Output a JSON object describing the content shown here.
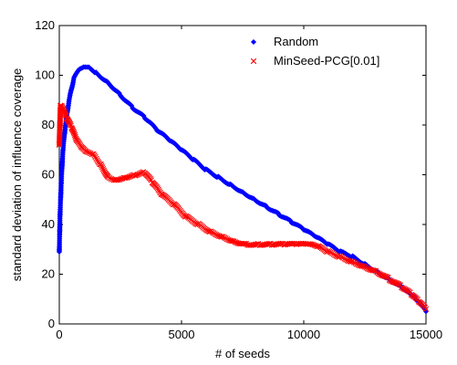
{
  "chart_data": {
    "type": "scatter",
    "title": "",
    "xlabel": "# of seeds",
    "ylabel": "standard deviation of influence coverage",
    "xlim": [
      0,
      15000
    ],
    "ylim": [
      0,
      120
    ],
    "xticks": [
      0,
      5000,
      10000,
      15000
    ],
    "yticks": [
      0,
      20,
      40,
      60,
      80,
      100,
      120
    ],
    "grid": false,
    "legend_position": "top-right",
    "series": [
      {
        "name": "Random",
        "marker": "diamond",
        "color": "#0000ff",
        "x": [
          0,
          30,
          80,
          150,
          250,
          400,
          600,
          800,
          1000,
          1200,
          1500,
          2000,
          2500,
          3000,
          3500,
          4000,
          4500,
          5000,
          5500,
          6000,
          6500,
          7000,
          7500,
          8000,
          8500,
          9000,
          9500,
          10000,
          10500,
          11000,
          11500,
          12000,
          12500,
          13000,
          13500,
          14000,
          14300,
          14600,
          14800,
          15000
        ],
        "y": [
          29,
          44,
          57,
          70,
          80,
          90,
          99,
          102,
          103,
          103,
          101,
          97,
          92,
          87,
          83,
          78,
          74,
          70,
          66,
          62,
          59,
          56,
          53,
          50,
          47,
          44,
          41,
          38,
          35,
          32,
          29,
          27,
          24,
          21,
          18,
          15,
          13,
          10,
          8,
          5
        ]
      },
      {
        "name": "MinSeed-PCG[0.01]",
        "marker": "x",
        "color": "#ff0000",
        "x": [
          0,
          50,
          100,
          200,
          300,
          500,
          700,
          900,
          1100,
          1400,
          1700,
          2000,
          2300,
          2700,
          3100,
          3500,
          3800,
          4200,
          4700,
          5200,
          5700,
          6200,
          6700,
          7200,
          7700,
          8200,
          8700,
          9200,
          9700,
          10200,
          10600,
          11000,
          11500,
          12000,
          12500,
          13000,
          13500,
          14000,
          14400,
          14700,
          15000
        ],
        "y": [
          72,
          88,
          88,
          86,
          83,
          79,
          74,
          71,
          69,
          68,
          64,
          59,
          58,
          59,
          60,
          61,
          57,
          52,
          48,
          43,
          40,
          37,
          35,
          33,
          32,
          32,
          32,
          32,
          32,
          32,
          31,
          29,
          27,
          25,
          23,
          21,
          18,
          15,
          12,
          9,
          6
        ]
      }
    ]
  }
}
